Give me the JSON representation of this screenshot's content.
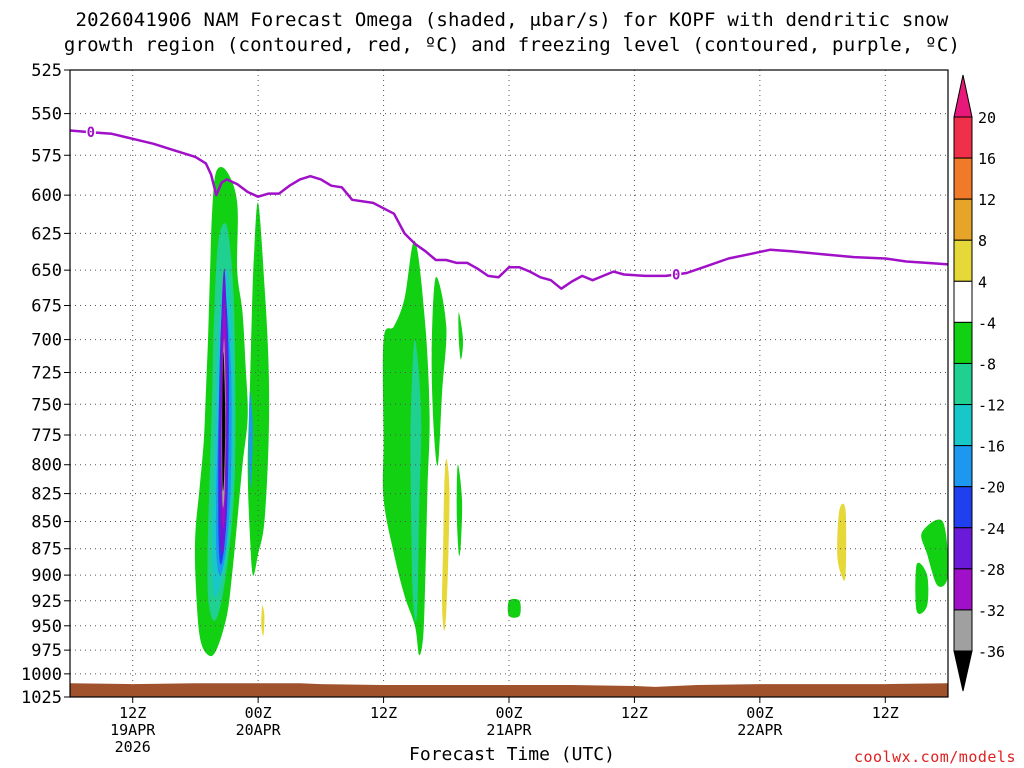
{
  "title": {
    "line1": "2026041906 NAM Forecast Omega (shaded, μbar/s) for KOPF with dendritic snow",
    "line2": "growth region (contoured, red, ºC) and freezing level (contoured, purple, ºC)"
  },
  "credit": "coolwx.com/models",
  "chart_data": {
    "type": "heatmap",
    "title": "2026041906 NAM Forecast Omega (shaded, μbar/s) for KOPF with dendritic snow growth region (contoured, red, ºC) and freezing level (contoured, purple, ºC)",
    "xlabel": "Forecast Time (UTC)",
    "ylabel": "",
    "x_unit": "forecast hour from 2026041906",
    "xlim": [
      0,
      84
    ],
    "ylim": [
      525,
      1025
    ],
    "y_inverted": true,
    "grid": true,
    "y_ticks": [
      525,
      550,
      575,
      600,
      625,
      650,
      675,
      700,
      725,
      750,
      775,
      800,
      825,
      850,
      875,
      900,
      925,
      950,
      975,
      1000,
      1025
    ],
    "x_ticks": [
      {
        "hour": 6,
        "lines": [
          "12Z",
          "19APR",
          "2026"
        ]
      },
      {
        "hour": 18,
        "lines": [
          "00Z",
          "20APR"
        ]
      },
      {
        "hour": 30,
        "lines": [
          "12Z"
        ]
      },
      {
        "hour": 42,
        "lines": [
          "00Z",
          "21APR"
        ]
      },
      {
        "hour": 54,
        "lines": [
          "12Z"
        ]
      },
      {
        "hour": 66,
        "lines": [
          "00Z",
          "22APR"
        ]
      },
      {
        "hour": 78,
        "lines": [
          "12Z"
        ]
      }
    ],
    "colorbar": {
      "labels": [
        "20",
        "16",
        "12",
        "8",
        "4",
        "-4",
        "-8",
        "-12",
        "-16",
        "-20",
        "-24",
        "-28",
        "-32",
        "-36"
      ],
      "bins": [
        {
          "from": 16,
          "to": 20,
          "color": "#f0304a"
        },
        {
          "from": 12,
          "to": 16,
          "color": "#f07a28"
        },
        {
          "from": 8,
          "to": 12,
          "color": "#e6a428"
        },
        {
          "from": 4,
          "to": 8,
          "color": "#e6d838"
        },
        {
          "from": -4,
          "to": 4,
          "color": "#ffffff"
        },
        {
          "from": -8,
          "to": -4,
          "color": "#12d012"
        },
        {
          "from": -12,
          "to": -8,
          "color": "#20d090"
        },
        {
          "from": -16,
          "to": -12,
          "color": "#18c8c8"
        },
        {
          "from": -20,
          "to": -16,
          "color": "#1c98f0"
        },
        {
          "from": -24,
          "to": -20,
          "color": "#2040f0"
        },
        {
          "from": -28,
          "to": -24,
          "color": "#6a1ad8"
        },
        {
          "from": -32,
          "to": -28,
          "color": "#a010c8"
        },
        {
          "from": -36,
          "to": -32,
          "color": "#a0a0a0"
        }
      ],
      "over_color": "#e8187a",
      "under_color": "#000000"
    },
    "freezing_level": {
      "label": "0",
      "color": "#a010c8",
      "label_points": [
        {
          "hour": 2,
          "p": 561
        },
        {
          "hour": 58,
          "p": 653
        }
      ],
      "points": [
        [
          0,
          560
        ],
        [
          2,
          561
        ],
        [
          4,
          562
        ],
        [
          6,
          565
        ],
        [
          8,
          568
        ],
        [
          10,
          572
        ],
        [
          12,
          576
        ],
        [
          13,
          580
        ],
        [
          13.5,
          587
        ],
        [
          14,
          600
        ],
        [
          14.5,
          592
        ],
        [
          15,
          590
        ],
        [
          16,
          593
        ],
        [
          17,
          598
        ],
        [
          18,
          601
        ],
        [
          19,
          599
        ],
        [
          20,
          599
        ],
        [
          21,
          594
        ],
        [
          22,
          590
        ],
        [
          23,
          588
        ],
        [
          24,
          590
        ],
        [
          25,
          594
        ],
        [
          26,
          595
        ],
        [
          27,
          603
        ],
        [
          29,
          605
        ],
        [
          31,
          612
        ],
        [
          32,
          625
        ],
        [
          33,
          632
        ],
        [
          34,
          637
        ],
        [
          35,
          643
        ],
        [
          36,
          643
        ],
        [
          37,
          645
        ],
        [
          38,
          645
        ],
        [
          39,
          649
        ],
        [
          40,
          654
        ],
        [
          41,
          655
        ],
        [
          42,
          648
        ],
        [
          43,
          648
        ],
        [
          44,
          651
        ],
        [
          45,
          655
        ],
        [
          46,
          657
        ],
        [
          47,
          663
        ],
        [
          48,
          658
        ],
        [
          49,
          654
        ],
        [
          50,
          657
        ],
        [
          51,
          654
        ],
        [
          52,
          651
        ],
        [
          53,
          653
        ],
        [
          55,
          654
        ],
        [
          57,
          654
        ],
        [
          58,
          653
        ],
        [
          59,
          652
        ],
        [
          61,
          647
        ],
        [
          63,
          642
        ],
        [
          65,
          639
        ],
        [
          67,
          636
        ],
        [
          69,
          637
        ],
        [
          72,
          639
        ],
        [
          75,
          641
        ],
        [
          78,
          642
        ],
        [
          80,
          644
        ],
        [
          82,
          645
        ],
        [
          84,
          646
        ]
      ]
    },
    "omega_regions": [
      {
        "value_bin": "-8 to -4",
        "color": "#12d012",
        "points": [
          [
            15,
            585
          ],
          [
            16,
            605
          ],
          [
            16,
            650
          ],
          [
            16.5,
            680
          ],
          [
            16.8,
            720
          ],
          [
            17,
            760
          ],
          [
            16.5,
            800
          ],
          [
            16,
            850
          ],
          [
            15.5,
            900
          ],
          [
            15,
            940
          ],
          [
            14,
            975
          ],
          [
            13.2,
            980
          ],
          [
            12.4,
            960
          ],
          [
            12,
            900
          ],
          [
            12,
            860
          ],
          [
            12.4,
            820
          ],
          [
            12.8,
            780
          ],
          [
            13,
            740
          ],
          [
            13.2,
            700
          ],
          [
            13.4,
            650
          ],
          [
            13.6,
            610
          ],
          [
            14,
            585
          ]
        ]
      },
      {
        "value_bin": "-8 to -4",
        "color": "#12d012",
        "points": [
          [
            18,
            605
          ],
          [
            18.6,
            660
          ],
          [
            19,
            720
          ],
          [
            19,
            780
          ],
          [
            18.6,
            850
          ],
          [
            18,
            880
          ],
          [
            17.5,
            900
          ],
          [
            17.2,
            860
          ],
          [
            17,
            800
          ],
          [
            17.2,
            740
          ],
          [
            17.4,
            680
          ],
          [
            17.6,
            640
          ]
        ]
      },
      {
        "value_bin": "-8 to -4",
        "color": "#12d012",
        "points": [
          [
            33,
            630
          ],
          [
            34,
            690
          ],
          [
            34.4,
            760
          ],
          [
            34.2,
            820
          ],
          [
            34,
            900
          ],
          [
            33.8,
            960
          ],
          [
            33.4,
            980
          ],
          [
            33,
            950
          ],
          [
            32,
            920
          ],
          [
            31,
            880
          ],
          [
            30,
            830
          ],
          [
            30,
            780
          ],
          [
            30,
            700
          ],
          [
            31,
            690
          ],
          [
            32,
            670
          ]
        ]
      },
      {
        "value_bin": "-8 to -4",
        "color": "#12d012",
        "points": [
          [
            35,
            655
          ],
          [
            36,
            690
          ],
          [
            35.6,
            740
          ],
          [
            35.2,
            800
          ],
          [
            34.8,
            770
          ],
          [
            34.6,
            710
          ]
        ]
      },
      {
        "value_bin": "-8 to -4",
        "color": "#12d012",
        "points": [
          [
            37.2,
            680
          ],
          [
            37.6,
            700
          ],
          [
            37.4,
            715
          ],
          [
            37.2,
            700
          ]
        ]
      },
      {
        "value_bin": "-8 to -4",
        "color": "#12d012",
        "points": [
          [
            37.1,
            800
          ],
          [
            37.5,
            830
          ],
          [
            37.4,
            870
          ],
          [
            37.2,
            880
          ],
          [
            37,
            840
          ]
        ]
      },
      {
        "value_bin": "-8 to -4",
        "color": "#12d012",
        "points": [
          [
            42,
            925
          ],
          [
            43,
            925
          ],
          [
            43,
            940
          ],
          [
            42,
            940
          ]
        ]
      },
      {
        "value_bin": "-8 to -4",
        "color": "#12d012",
        "points": [
          [
            83.5,
            850
          ],
          [
            84,
            900
          ],
          [
            83,
            910
          ],
          [
            82,
            880
          ],
          [
            81.5,
            860
          ]
        ]
      },
      {
        "value_bin": "-8 to -4",
        "color": "#12d012",
        "points": [
          [
            81,
            890
          ],
          [
            82,
            900
          ],
          [
            82,
            930
          ],
          [
            81,
            935
          ]
        ]
      },
      {
        "value_bin": "-12 to -8",
        "color": "#20d090",
        "points": [
          [
            15,
            620
          ],
          [
            15.6,
            660
          ],
          [
            15.8,
            720
          ],
          [
            15.8,
            800
          ],
          [
            15.4,
            860
          ],
          [
            14.6,
            920
          ],
          [
            13.8,
            945
          ],
          [
            13.2,
            920
          ],
          [
            13.2,
            860
          ],
          [
            13.4,
            800
          ],
          [
            13.6,
            740
          ],
          [
            13.8,
            680
          ],
          [
            14.2,
            630
          ]
        ]
      },
      {
        "value_bin": "-12 to -8",
        "color": "#20d090",
        "points": [
          [
            33,
            700
          ],
          [
            33.6,
            760
          ],
          [
            33.4,
            840
          ],
          [
            33.2,
            940
          ],
          [
            32.8,
            920
          ],
          [
            32.6,
            820
          ],
          [
            32.6,
            760
          ]
        ]
      },
      {
        "value_bin": "-16 to -12",
        "color": "#18c8c8",
        "points": [
          [
            15,
            650
          ],
          [
            15.6,
            700
          ],
          [
            15.6,
            800
          ],
          [
            15.2,
            860
          ],
          [
            14.6,
            900
          ],
          [
            13.8,
            920
          ],
          [
            13.6,
            860
          ],
          [
            13.8,
            800
          ],
          [
            14,
            740
          ],
          [
            14.3,
            680
          ]
        ]
      },
      {
        "value_bin": "-20 to -16",
        "color": "#1c98f0",
        "points": [
          [
            14.8,
            665
          ],
          [
            15.4,
            720
          ],
          [
            15.4,
            810
          ],
          [
            15,
            870
          ],
          [
            14.4,
            900
          ],
          [
            14,
            880
          ],
          [
            14,
            820
          ],
          [
            14.2,
            760
          ],
          [
            14.4,
            700
          ]
        ]
      },
      {
        "value_bin": "-20 to -16",
        "color": "#1c98f0",
        "points": [
          [
            17.2,
            740
          ],
          [
            17.5,
            770
          ],
          [
            17.3,
            820
          ],
          [
            17.1,
            790
          ]
        ]
      },
      {
        "value_bin": "-24 to -20",
        "color": "#2040f0",
        "points": [
          [
            14.8,
            660
          ],
          [
            15.2,
            720
          ],
          [
            15.1,
            820
          ],
          [
            14.8,
            870
          ],
          [
            14.4,
            890
          ],
          [
            14.2,
            860
          ],
          [
            14.2,
            780
          ],
          [
            14.4,
            700
          ]
        ]
      },
      {
        "value_bin": "-28 to -24",
        "color": "#6a1ad8",
        "points": [
          [
            14.8,
            650
          ],
          [
            15.1,
            720
          ],
          [
            15,
            830
          ],
          [
            14.8,
            868
          ],
          [
            14.5,
            880
          ],
          [
            14.3,
            850
          ],
          [
            14.3,
            760
          ],
          [
            14.5,
            680
          ]
        ]
      },
      {
        "value_bin": "-32 to -28",
        "color": "#a010c8",
        "points": [
          [
            14.8,
            675
          ],
          [
            15,
            730
          ],
          [
            14.9,
            820
          ],
          [
            14.7,
            855
          ],
          [
            14.5,
            840
          ],
          [
            14.5,
            760
          ],
          [
            14.6,
            700
          ]
        ]
      },
      {
        "value_bin": "-36 to -32",
        "color": "#a0a0a0",
        "points": [
          [
            14.75,
            700
          ],
          [
            14.9,
            750
          ],
          [
            14.8,
            820
          ],
          [
            14.6,
            835
          ],
          [
            14.5,
            780
          ],
          [
            14.6,
            730
          ]
        ]
      },
      {
        "value_bin": "below -36",
        "color": "#000000",
        "points": [
          [
            14.7,
            710
          ],
          [
            14.85,
            760
          ],
          [
            14.75,
            810
          ],
          [
            14.6,
            820
          ],
          [
            14.55,
            770
          ],
          [
            14.6,
            730
          ]
        ]
      },
      {
        "value_bin": "4 to 8",
        "color": "#e6d838",
        "points": [
          [
            36,
            795
          ],
          [
            36.3,
            820
          ],
          [
            36.2,
            880
          ],
          [
            36,
            935
          ],
          [
            35.8,
            955
          ],
          [
            35.6,
            930
          ],
          [
            35.7,
            870
          ],
          [
            35.8,
            820
          ]
        ]
      },
      {
        "value_bin": "4 to 8",
        "color": "#e6d838",
        "points": [
          [
            18.4,
            930
          ],
          [
            18.6,
            940
          ],
          [
            18.5,
            960
          ],
          [
            18.3,
            950
          ]
        ]
      },
      {
        "value_bin": "4 to 8",
        "color": "#e6d838",
        "points": [
          [
            73.6,
            840
          ],
          [
            74.2,
            840
          ],
          [
            74.2,
            900
          ],
          [
            73.8,
            900
          ],
          [
            73.4,
            880
          ]
        ]
      }
    ],
    "terrain": {
      "color": "#a0522d",
      "surface_pressure": [
        [
          0,
          1010
        ],
        [
          6,
          1011
        ],
        [
          12,
          1010
        ],
        [
          18,
          1010
        ],
        [
          22,
          1010
        ],
        [
          24,
          1011
        ],
        [
          30,
          1012
        ],
        [
          36,
          1012
        ],
        [
          42,
          1012
        ],
        [
          48,
          1012
        ],
        [
          54,
          1013
        ],
        [
          56,
          1014
        ],
        [
          60,
          1012
        ],
        [
          66,
          1011
        ],
        [
          72,
          1011
        ],
        [
          78,
          1011
        ],
        [
          84,
          1010
        ]
      ]
    }
  }
}
